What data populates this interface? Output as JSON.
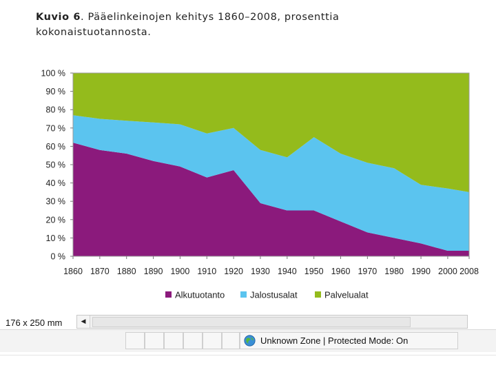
{
  "title": {
    "prefix": "Kuvio 6",
    "line1": ". Pääelinkeinojen kehitys 1860–2008, prosenttia",
    "line2": "kokonaistuotannosta."
  },
  "chart_data": {
    "type": "area",
    "stacked": true,
    "x": [
      1860,
      1870,
      1880,
      1890,
      1900,
      1910,
      1920,
      1930,
      1940,
      1950,
      1960,
      1970,
      1980,
      1990,
      2000,
      2008
    ],
    "series": [
      {
        "name": "Alkutuotanto",
        "color": "#8b1a7c",
        "values": [
          62,
          58,
          56,
          52,
          49,
          43,
          47,
          29,
          25,
          25,
          19,
          13,
          10,
          7,
          3,
          3
        ]
      },
      {
        "name": "Jalostusalat",
        "color": "#5bc4ef",
        "values": [
          15,
          17,
          18,
          21,
          23,
          24,
          23,
          29,
          29,
          40,
          37,
          38,
          38,
          32,
          34,
          32
        ]
      },
      {
        "name": "Palvelualat",
        "color": "#94bb1c",
        "values": [
          23,
          25,
          26,
          27,
          28,
          33,
          30,
          42,
          46,
          35,
          44,
          49,
          52,
          61,
          63,
          65
        ]
      }
    ],
    "ylim": [
      0,
      100
    ],
    "yticks": [
      "0 %",
      "10 %",
      "20 %",
      "30 %",
      "40 %",
      "50 %",
      "60 %",
      "70 %",
      "80 %",
      "90 %",
      "100 %"
    ],
    "xticks": [
      "1860",
      "1870",
      "1880",
      "1890",
      "1900",
      "1910",
      "1920",
      "1930",
      "1940",
      "1950",
      "1960",
      "1970",
      "1980",
      "1990",
      "2000",
      "2008"
    ],
    "legend_position": "bottom"
  },
  "browser": {
    "size_label": "176 x 250 mm",
    "scroll_left_glyph": "◀",
    "zone_text": "Unknown Zone | Protected Mode: On",
    "zone_icon": "globe-icon"
  }
}
